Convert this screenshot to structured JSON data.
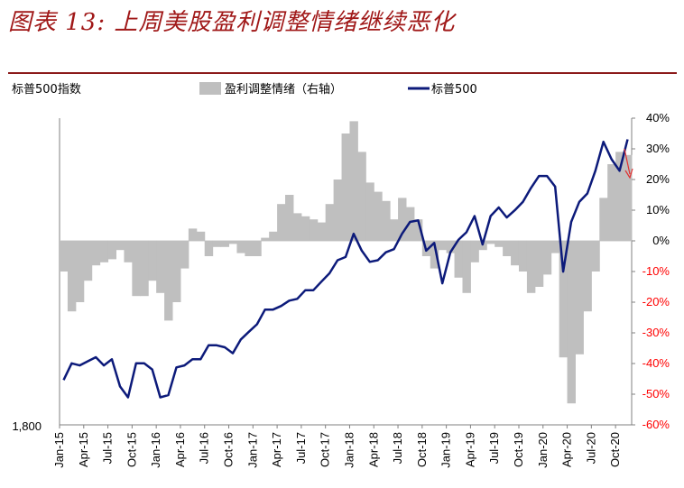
{
  "title": "图表 13:  上周美股盈利调整情绪继续恶化",
  "chart_data": {
    "type": "bar+line",
    "left_axis": {
      "label": "标普500指数",
      "tick_labels": [
        "1,800"
      ],
      "scale": "log"
    },
    "right_axis": {
      "tick_labels": [
        "40%",
        "30%",
        "20%",
        "10%",
        "0%",
        "-10%",
        "-20%",
        "-30%",
        "-40%",
        "-50%",
        "-60%"
      ],
      "ylim": [
        -60,
        40
      ],
      "units": "%",
      "negative_color": "#ff0000"
    },
    "x_tick_labels": [
      "Jan-15",
      "Apr-15",
      "Jul-15",
      "Oct-15",
      "Jan-16",
      "Apr-16",
      "Jul-16",
      "Oct-16",
      "Jan-17",
      "Apr-17",
      "Jul-17",
      "Oct-17",
      "Jan-18",
      "Apr-18",
      "Jul-18",
      "Oct-18",
      "Jan-19",
      "Apr-19",
      "Jul-19",
      "Oct-19",
      "Jan-20",
      "Apr-20",
      "Jul-20",
      "Oct-20"
    ],
    "legend": [
      {
        "name": "盈利调整情绪（右轴）",
        "type": "bar",
        "color": "#bfbfbf"
      },
      {
        "name": "标普500",
        "type": "line",
        "color": "#0c1a7a"
      }
    ],
    "series": [
      {
        "name": "盈利调整情绪（右轴）",
        "type": "bar",
        "axis": "right",
        "x": [
          "2015-01",
          "2015-02",
          "2015-03",
          "2015-04",
          "2015-05",
          "2015-06",
          "2015-07",
          "2015-08",
          "2015-09",
          "2015-10",
          "2015-11",
          "2015-12",
          "2016-01",
          "2016-02",
          "2016-03",
          "2016-04",
          "2016-05",
          "2016-06",
          "2016-07",
          "2016-08",
          "2016-09",
          "2016-10",
          "2016-11",
          "2016-12",
          "2017-01",
          "2017-02",
          "2017-03",
          "2017-04",
          "2017-05",
          "2017-06",
          "2017-07",
          "2017-08",
          "2017-09",
          "2017-10",
          "2017-11",
          "2017-12",
          "2018-01",
          "2018-02",
          "2018-03",
          "2018-04",
          "2018-05",
          "2018-06",
          "2018-07",
          "2018-08",
          "2018-09",
          "2018-10",
          "2018-11",
          "2018-12",
          "2019-01",
          "2019-02",
          "2019-03",
          "2019-04",
          "2019-05",
          "2019-06",
          "2019-07",
          "2019-08",
          "2019-09",
          "2019-10",
          "2019-11",
          "2019-12",
          "2020-01",
          "2020-02",
          "2020-03",
          "2020-04",
          "2020-05",
          "2020-06",
          "2020-07",
          "2020-08",
          "2020-09",
          "2020-10",
          "2020-11"
        ],
        "values": [
          -10,
          -23,
          -20,
          -13,
          -8,
          -7,
          -6,
          -3,
          -7,
          -18,
          -18,
          -13,
          -17,
          -26,
          -20,
          -9,
          4,
          3,
          -5,
          -2,
          -2,
          -1,
          -4,
          -5,
          -5,
          1,
          3,
          12,
          15,
          9,
          8,
          7,
          6,
          12,
          20,
          35,
          39,
          29,
          19,
          16,
          13,
          7,
          14,
          11,
          7,
          -5,
          -9,
          -3,
          -4,
          -12,
          -17,
          -7,
          -3,
          -1,
          -2,
          -5,
          -8,
          -10,
          -17,
          -15,
          -11,
          -4,
          -38,
          -53,
          -37,
          -23,
          -10,
          14,
          25,
          29,
          28
        ]
      },
      {
        "name": "标普500",
        "type": "line",
        "axis": "left",
        "x": [
          "2015-01",
          "2015-02",
          "2015-03",
          "2015-04",
          "2015-05",
          "2015-06",
          "2015-07",
          "2015-08",
          "2015-09",
          "2015-10",
          "2015-11",
          "2015-12",
          "2016-01",
          "2016-02",
          "2016-03",
          "2016-04",
          "2016-05",
          "2016-06",
          "2016-07",
          "2016-08",
          "2016-09",
          "2016-10",
          "2016-11",
          "2016-12",
          "2017-01",
          "2017-02",
          "2017-03",
          "2017-04",
          "2017-05",
          "2017-06",
          "2017-07",
          "2017-08",
          "2017-09",
          "2017-10",
          "2017-11",
          "2017-12",
          "2018-01",
          "2018-02",
          "2018-03",
          "2018-04",
          "2018-05",
          "2018-06",
          "2018-07",
          "2018-08",
          "2018-09",
          "2018-10",
          "2018-11",
          "2018-12",
          "2019-01",
          "2019-02",
          "2019-03",
          "2019-04",
          "2019-05",
          "2019-06",
          "2019-07",
          "2019-08",
          "2019-09",
          "2019-10",
          "2019-11",
          "2019-12",
          "2020-01",
          "2020-02",
          "2020-03",
          "2020-04",
          "2020-05",
          "2020-06",
          "2020-07",
          "2020-08",
          "2020-09",
          "2020-10",
          "2020-11"
        ],
        "values": [
          2000,
          2080,
          2070,
          2090,
          2110,
          2070,
          2100,
          1970,
          1920,
          2080,
          2080,
          2050,
          1920,
          1930,
          2060,
          2070,
          2100,
          2100,
          2170,
          2170,
          2160,
          2130,
          2200,
          2240,
          2280,
          2360,
          2360,
          2380,
          2410,
          2420,
          2470,
          2470,
          2520,
          2570,
          2650,
          2670,
          2820,
          2710,
          2640,
          2650,
          2700,
          2720,
          2820,
          2900,
          2910,
          2710,
          2760,
          2510,
          2700,
          2780,
          2830,
          2940,
          2750,
          2940,
          3000,
          2930,
          2980,
          3040,
          3140,
          3230,
          3230,
          3150,
          2580,
          2900,
          3040,
          3100,
          3270,
          3500,
          3360,
          3270,
          3520
        ]
      }
    ]
  }
}
